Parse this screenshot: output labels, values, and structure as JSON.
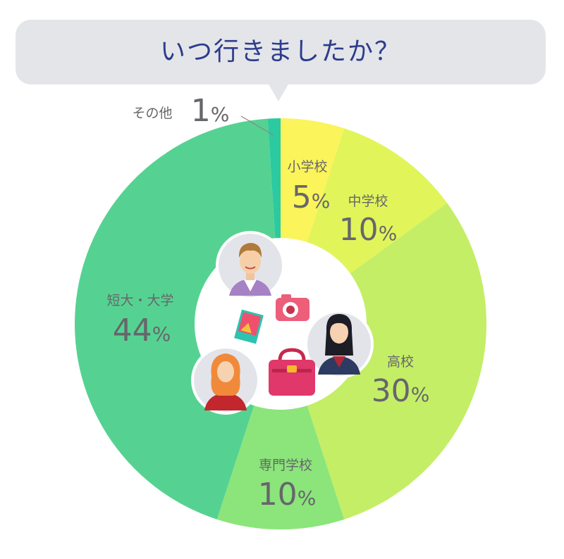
{
  "title": "いつ行きましたか？",
  "colors": {
    "title": "#2c3d8c",
    "bubble": "#e4e5e9",
    "label": "#66666b",
    "center": "#ffffff"
  },
  "chart_data": {
    "type": "pie",
    "title": "いつ行きましたか？",
    "unit": "%",
    "categories": [
      "小学校",
      "中学校",
      "高校",
      "専門学校",
      "短大・大学",
      "その他"
    ],
    "values": [
      5,
      10,
      30,
      10,
      44,
      1
    ],
    "colors": [
      "#fbf45a",
      "#e1f55a",
      "#c4ee66",
      "#8be57a",
      "#55d291",
      "#2ccaa0"
    ],
    "legend": "labels on slices"
  }
}
